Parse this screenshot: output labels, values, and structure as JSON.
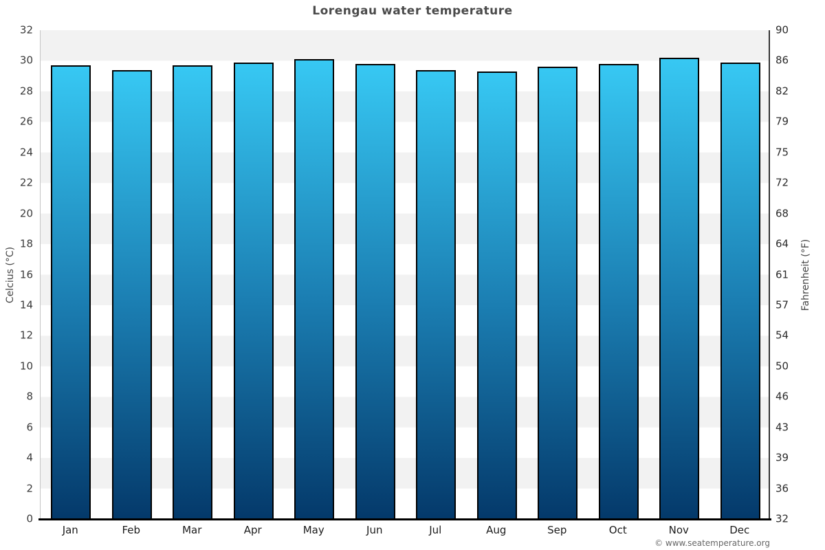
{
  "title": "Lorengau water temperature",
  "footer": "© www.seatemperature.org",
  "chart_data": {
    "type": "bar",
    "title": "Lorengau water temperature",
    "categories": [
      "Jan",
      "Feb",
      "Mar",
      "Apr",
      "May",
      "Jun",
      "Jul",
      "Aug",
      "Sep",
      "Oct",
      "Nov",
      "Dec"
    ],
    "values": [
      29.7,
      29.4,
      29.7,
      29.9,
      30.1,
      29.8,
      29.4,
      29.3,
      29.6,
      29.8,
      30.2,
      29.9
    ],
    "unit": "°C",
    "xlabel": "",
    "ylabel_left": "Celcius (°C)",
    "ylabel_right": "Fahrenheit (°F)",
    "ylim_celsius": [
      0,
      32
    ],
    "ylim_fahrenheit": [
      32,
      90
    ],
    "celsius_ticks": [
      32,
      30,
      28,
      26,
      24,
      22,
      20,
      18,
      16,
      14,
      12,
      10,
      8,
      6,
      4,
      2,
      0
    ],
    "fahrenheit_ticks": [
      90,
      86,
      82,
      79,
      75,
      72,
      68,
      64,
      61,
      57,
      54,
      50,
      46,
      43,
      39,
      36,
      32
    ],
    "grid": "alternating horizontal bands every 2°C, gray #f2f2f2 / white",
    "legend": "none",
    "colors": {
      "bar_gradient_top": "#37c8f3",
      "bar_gradient_mid": "#1b7eb2",
      "bar_gradient_bottom": "#04396a",
      "bar_border": "#000000",
      "band_gray": "#f2f2f2",
      "band_white": "#ffffff",
      "axis_line_left": "#c4c4c4",
      "axis_line_right": "#333333",
      "axis_line_bottom": "#000000",
      "title_color": "#4a4a4a",
      "tick_color": "#3a3a3a",
      "footer_color": "#666666"
    }
  }
}
